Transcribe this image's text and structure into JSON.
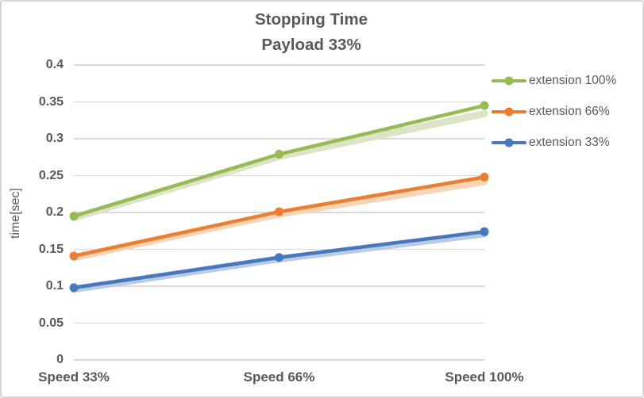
{
  "colors": {
    "text": "#595959",
    "gridline": "#d9d9d9",
    "frame_border": "#d7d7d7",
    "background": "#ffffff"
  },
  "chart_data": {
    "type": "line",
    "title": "Stopping Time",
    "subtitle": "Payload 33%",
    "ylabel": "time[sec]",
    "xlabel": "",
    "categories": [
      "Speed 33%",
      "Speed 66%",
      "Speed 100%"
    ],
    "series": [
      {
        "name": "extension 100%",
        "color": "#96ba54",
        "values": [
          0.195,
          0.279,
          0.345
        ],
        "shadow_color": "#dbe5c5",
        "shadow_values": [
          0.193,
          0.276,
          0.334
        ]
      },
      {
        "name": "extension 66%",
        "color": "#ed7d31",
        "values": [
          0.141,
          0.201,
          0.248
        ],
        "shadow_color": "#fad4b4",
        "shadow_values": [
          0.139,
          0.198,
          0.242
        ]
      },
      {
        "name": "extension 33%",
        "color": "#4777bd",
        "values": [
          0.098,
          0.139,
          0.174
        ],
        "shadow_color": "#b9cce6",
        "shadow_values": [
          0.096,
          0.137,
          0.171
        ]
      }
    ],
    "ylim": [
      0,
      0.4
    ],
    "yticks": [
      "0",
      "0.05",
      "0.1",
      "0.15",
      "0.2",
      "0.25",
      "0.3",
      "0.35",
      "0.4"
    ],
    "grid": true,
    "legend_position": "right",
    "marker": "circle"
  }
}
